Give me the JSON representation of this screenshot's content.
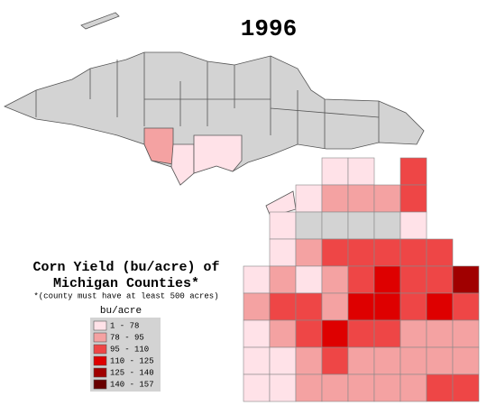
{
  "title": "1996",
  "heading": [
    "Corn Yield (bu/acre) of",
    "Michigan Counties*"
  ],
  "note": "*(county must have at least 500 acres)",
  "legend": {
    "title": "bu/acre",
    "items": [
      {
        "label": "1 - 78",
        "color": "#ffe2e8"
      },
      {
        "label": "78 - 95",
        "color": "#f4a2a2"
      },
      {
        "label": "95 - 110",
        "color": "#ee4646"
      },
      {
        "label": "110 - 125",
        "color": "#de0000"
      },
      {
        "label": "125 - 140",
        "color": "#a00000"
      },
      {
        "label": "140 - 157",
        "color": "#680000"
      }
    ]
  }
}
